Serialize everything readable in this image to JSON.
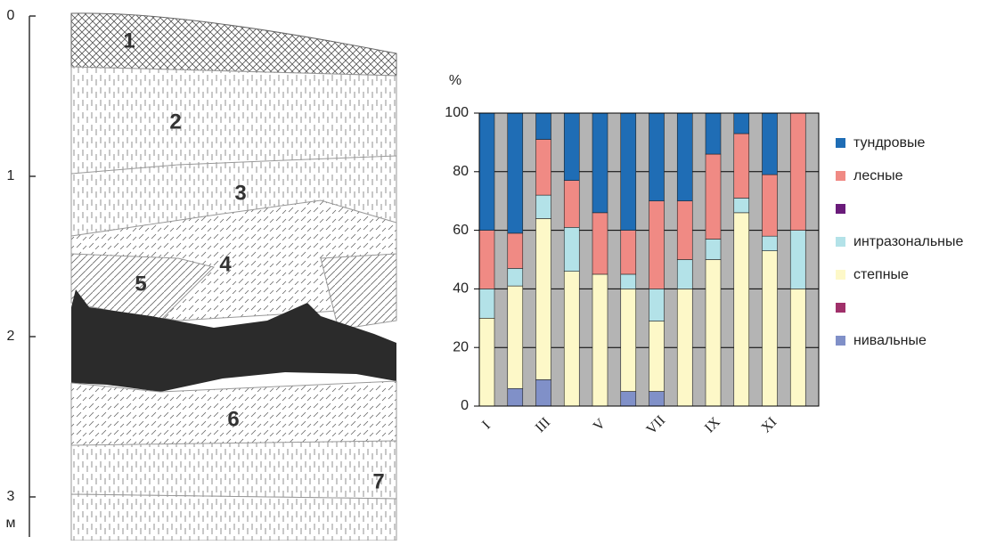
{
  "chart_data": [
    {
      "type": "section",
      "y_label": "м",
      "ylim": [
        0,
        3.25
      ],
      "yticks": [
        0,
        1,
        2,
        3
      ],
      "layers": [
        "1",
        "2",
        "3",
        "4",
        "5",
        "6",
        "7"
      ]
    },
    {
      "type": "stacked_bar",
      "y_label": "%",
      "ylim": [
        0,
        100
      ],
      "yticks": [
        0,
        20,
        40,
        60,
        80,
        100
      ],
      "grid": true,
      "legend": "right",
      "categories": [
        "I",
        null,
        "III",
        null,
        "V",
        null,
        "VII",
        null,
        "IX",
        null,
        "XI",
        null
      ],
      "series": [
        {
          "name": "тундровые",
          "color": "#1f6db5",
          "values": [
            40,
            41,
            9,
            23,
            34,
            40,
            30,
            30,
            14,
            7,
            21,
            0
          ]
        },
        {
          "name": "лесные",
          "color": "#f08a84",
          "values": [
            20,
            12,
            19,
            16,
            21,
            15,
            30,
            20,
            29,
            22,
            21,
            40
          ]
        },
        {
          "name": null,
          "color": "#6a1b7a",
          "values": [
            0,
            0,
            0,
            0,
            0,
            0,
            0,
            0,
            0,
            0,
            0,
            0
          ]
        },
        {
          "name": "интразональные",
          "color": "#b3e2e8",
          "values": [
            10,
            6,
            8,
            15,
            0,
            5,
            11,
            10,
            7,
            5,
            5,
            20
          ]
        },
        {
          "name": "степные",
          "color": "#fdf8c8",
          "values": [
            30,
            35,
            55,
            46,
            45,
            35,
            24,
            40,
            50,
            66,
            53,
            40
          ]
        },
        {
          "name": null,
          "color": "#a0306a",
          "values": [
            0,
            0,
            0,
            0,
            0,
            0,
            0,
            0,
            0,
            0,
            0,
            0
          ]
        },
        {
          "name": "нивальные",
          "color": "#8090c8",
          "values": [
            0,
            6,
            9,
            0,
            0,
            5,
            5,
            0,
            0,
            0,
            0,
            0
          ]
        }
      ]
    }
  ]
}
